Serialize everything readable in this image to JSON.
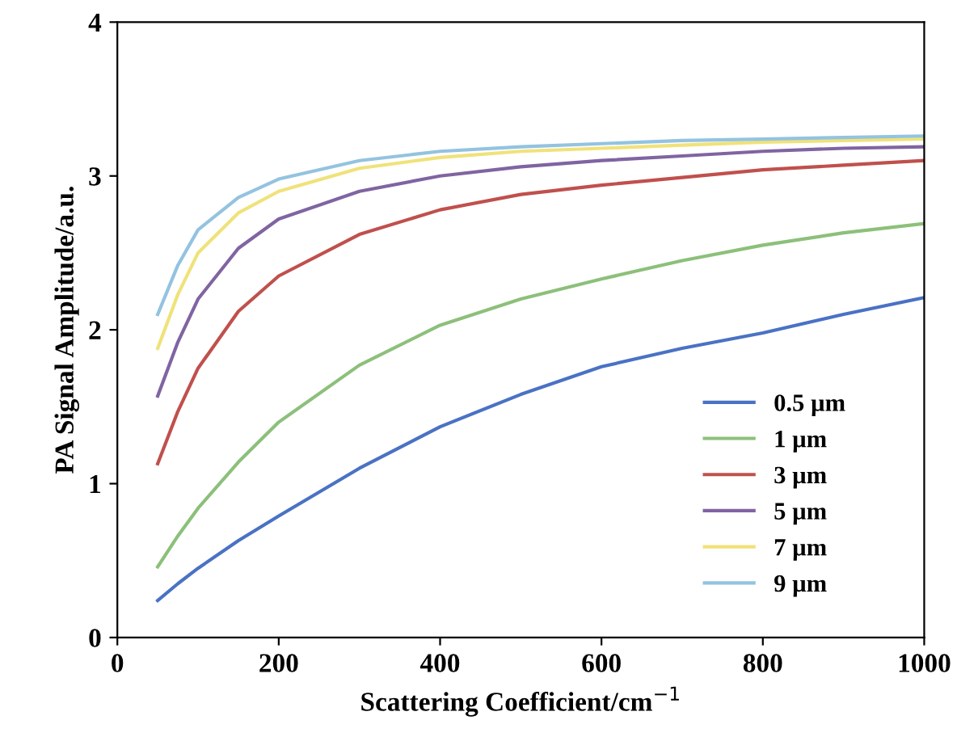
{
  "chart_data": {
    "type": "line",
    "xlabel": "Scattering Coefficient/cm$^{−1}$",
    "ylabel": "PA Signal Amplitude/a.u.",
    "x": [
      50,
      75,
      100,
      150,
      200,
      300,
      400,
      500,
      600,
      700,
      800,
      900,
      1000
    ],
    "series": [
      {
        "name": "0.5 µm",
        "color": "#4a72c4",
        "values": [
          0.24,
          0.35,
          0.45,
          0.63,
          0.79,
          1.1,
          1.37,
          1.58,
          1.76,
          1.88,
          1.98,
          2.1,
          2.21
        ]
      },
      {
        "name": "1 µm",
        "color": "#8cc07a",
        "values": [
          0.46,
          0.66,
          0.84,
          1.14,
          1.4,
          1.77,
          2.03,
          2.2,
          2.33,
          2.45,
          2.55,
          2.63,
          2.69
        ]
      },
      {
        "name": "3 µm",
        "color": "#c0504d",
        "values": [
          1.13,
          1.47,
          1.75,
          2.12,
          2.35,
          2.62,
          2.78,
          2.88,
          2.94,
          2.99,
          3.04,
          3.07,
          3.1
        ]
      },
      {
        "name": "5 µm",
        "color": "#8064a2",
        "values": [
          1.57,
          1.92,
          2.2,
          2.53,
          2.72,
          2.9,
          3.0,
          3.06,
          3.1,
          3.13,
          3.16,
          3.18,
          3.19
        ]
      },
      {
        "name": "7 µm",
        "color": "#f0e27a",
        "values": [
          1.88,
          2.23,
          2.5,
          2.76,
          2.9,
          3.05,
          3.12,
          3.16,
          3.18,
          3.2,
          3.22,
          3.23,
          3.24
        ]
      },
      {
        "name": "9 µm",
        "color": "#93c3e0",
        "values": [
          2.1,
          2.42,
          2.65,
          2.86,
          2.98,
          3.1,
          3.16,
          3.19,
          3.21,
          3.23,
          3.24,
          3.25,
          3.26
        ]
      }
    ],
    "xlim": [
      0,
      1000
    ],
    "ylim": [
      0,
      4
    ],
    "xticks": [
      0,
      200,
      400,
      600,
      800,
      1000
    ],
    "yticks": [
      0,
      1,
      2,
      3,
      4
    ],
    "grid": false,
    "legend": "bottom right",
    "marker": "none",
    "line_style": "solid"
  }
}
